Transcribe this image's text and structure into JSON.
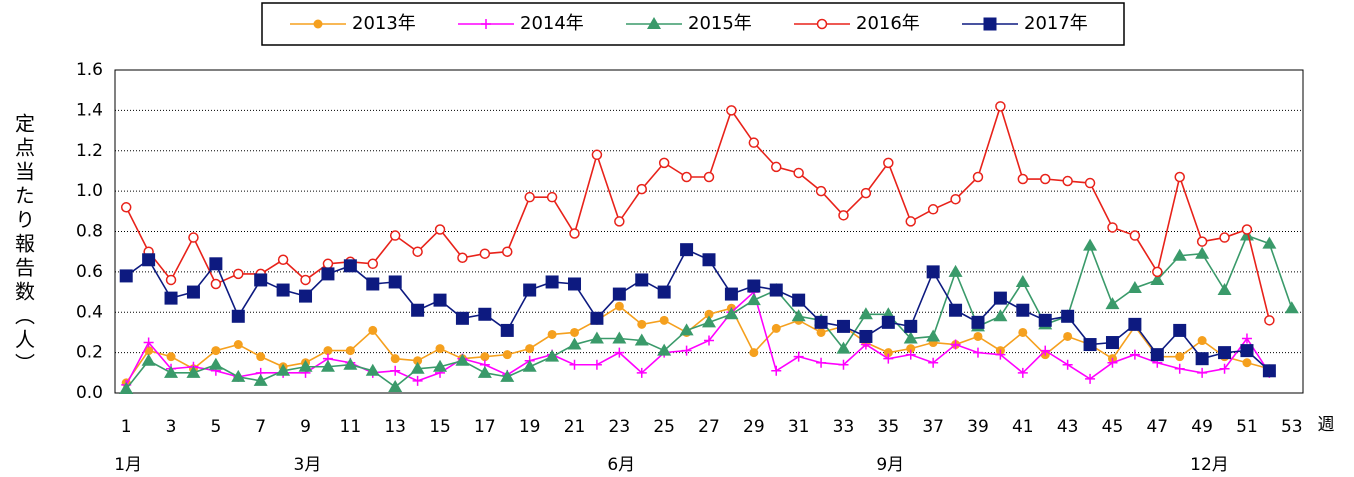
{
  "chart_data": {
    "type": "line",
    "y_label": "定点当たり報告数（人）",
    "x_label": "週",
    "categories": [
      "1",
      null,
      "3",
      null,
      "5",
      null,
      "7",
      null,
      "9",
      null,
      "11",
      null,
      "13",
      null,
      "15",
      null,
      "17",
      null,
      "19",
      null,
      "21",
      null,
      "23",
      null,
      "25",
      null,
      "27",
      null,
      "29",
      null,
      "31",
      null,
      "33",
      null,
      "35",
      null,
      "37",
      null,
      "39",
      null,
      "41",
      null,
      "43",
      null,
      "45",
      null,
      "47",
      null,
      "49",
      null,
      "51",
      null,
      "53"
    ],
    "month_labels": [
      {
        "label": "1月",
        "category": "1"
      },
      {
        "label": "3月",
        "category": "9"
      },
      {
        "label": "6月",
        "category": "23"
      },
      {
        "label": "9月",
        "category": "35"
      },
      {
        "label": "12月",
        "category": "49"
      }
    ],
    "ylim": [
      0,
      1.6
    ],
    "yticks": [
      {
        "value": 0,
        "label": "0.0"
      },
      0.2,
      0.4,
      0.6,
      0.8,
      {
        "value": 1,
        "label": "1.0"
      },
      1.2,
      1.4,
      1.6
    ],
    "grid": true,
    "legend": "top",
    "series": [
      {
        "name": "2013年",
        "color": "#f5a01e",
        "marker": "filled-circle",
        "values": [
          0.05,
          0.21,
          0.18,
          0.12,
          0.21,
          0.24,
          0.18,
          0.13,
          0.15,
          0.21,
          0.21,
          0.31,
          0.17,
          0.16,
          0.22,
          0.17,
          0.18,
          0.19,
          0.22,
          0.29,
          0.3,
          0.36,
          0.43,
          0.34,
          0.36,
          0.3,
          0.39,
          0.42,
          0.2,
          0.32,
          0.36,
          0.3,
          0.33,
          0.25,
          0.2,
          0.22,
          0.25,
          0.24,
          0.28,
          0.21,
          0.3,
          0.19,
          0.28,
          0.24,
          0.17,
          0.33,
          0.18,
          0.18,
          0.26,
          0.18,
          0.15,
          0.12,
          null
        ]
      },
      {
        "name": "2014年",
        "color": "#ff00ff",
        "marker": "plus",
        "values": [
          0.04,
          0.25,
          0.12,
          0.13,
          0.11,
          0.08,
          0.1,
          0.1,
          0.1,
          0.17,
          0.15,
          0.1,
          0.11,
          0.06,
          0.1,
          0.17,
          0.14,
          0.09,
          0.16,
          0.19,
          0.14,
          0.14,
          0.2,
          0.1,
          0.2,
          0.21,
          0.26,
          0.4,
          0.5,
          0.11,
          0.18,
          0.15,
          0.14,
          0.24,
          0.17,
          0.19,
          0.15,
          0.24,
          0.2,
          0.19,
          0.1,
          0.21,
          0.14,
          0.07,
          0.15,
          0.19,
          0.15,
          0.12,
          0.1,
          0.12,
          0.27,
          0.1,
          null
        ]
      },
      {
        "name": "2015年",
        "color": "#3a9a6a",
        "marker": "triangle",
        "values": [
          0.02,
          0.16,
          0.1,
          0.1,
          0.14,
          0.08,
          0.06,
          0.11,
          0.13,
          0.13,
          0.14,
          0.11,
          0.03,
          0.12,
          0.13,
          0.16,
          0.1,
          0.08,
          0.13,
          0.18,
          0.24,
          0.27,
          0.27,
          0.26,
          0.21,
          0.31,
          0.35,
          0.39,
          0.46,
          0.51,
          0.38,
          0.36,
          0.22,
          0.39,
          0.39,
          0.27,
          0.28,
          0.6,
          0.33,
          0.38,
          0.55,
          0.34,
          0.38,
          0.73,
          0.44,
          0.52,
          0.56,
          0.68,
          0.69,
          0.51,
          0.78,
          0.74,
          0.42
        ]
      },
      {
        "name": "2016年",
        "color": "#e8221a",
        "marker": "open-circle",
        "values": [
          0.92,
          0.7,
          0.56,
          0.77,
          0.54,
          0.59,
          0.59,
          0.66,
          0.56,
          0.64,
          0.65,
          0.64,
          0.78,
          0.7,
          0.81,
          0.67,
          0.69,
          0.7,
          0.97,
          0.97,
          0.79,
          1.18,
          0.85,
          1.01,
          1.14,
          1.07,
          1.07,
          1.4,
          1.24,
          1.12,
          1.09,
          1.0,
          0.88,
          0.99,
          1.14,
          0.85,
          0.91,
          0.96,
          1.07,
          1.42,
          1.06,
          1.06,
          1.05,
          1.04,
          0.82,
          0.78,
          0.6,
          1.07,
          0.75,
          0.77,
          0.81,
          0.36,
          null
        ]
      },
      {
        "name": "2017年",
        "color": "#0d1a80",
        "marker": "square",
        "values": [
          0.58,
          0.66,
          0.47,
          0.5,
          0.64,
          0.38,
          0.56,
          0.51,
          0.48,
          0.59,
          0.63,
          0.54,
          0.55,
          0.41,
          0.46,
          0.37,
          0.39,
          0.31,
          0.51,
          0.55,
          0.54,
          0.37,
          0.49,
          0.56,
          0.5,
          0.71,
          0.66,
          0.49,
          0.53,
          0.51,
          0.46,
          0.35,
          0.33,
          0.28,
          0.35,
          0.33,
          0.6,
          0.41,
          0.35,
          0.47,
          0.41,
          0.36,
          0.38,
          0.24,
          0.25,
          0.34,
          0.19,
          0.31,
          0.17,
          0.2,
          0.21,
          0.11,
          null
        ]
      }
    ]
  }
}
